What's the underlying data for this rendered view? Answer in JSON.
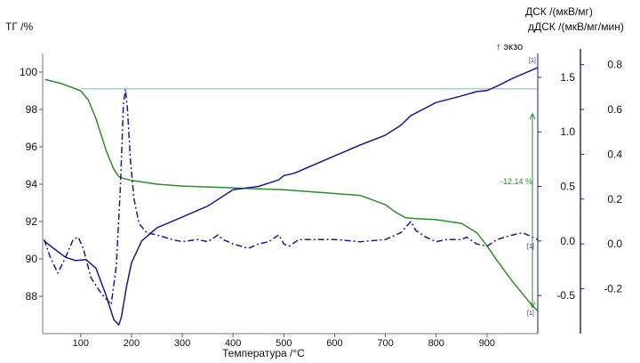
{
  "chart_data": {
    "type": "line",
    "xlabel": "Температура /°C",
    "xlim": [
      25,
      1000
    ],
    "x_ticks": [
      100,
      200,
      300,
      400,
      500,
      600,
      700,
      800,
      900
    ],
    "colors": {
      "tg": "#2e8b2e",
      "dsc": "#1a1a8c",
      "ddsc": "#1a1a8c",
      "reference": "#7fb3c8"
    },
    "axes": {
      "tg": {
        "label": "ТГ /%",
        "lim": [
          86,
          101
        ],
        "ticks": [
          88,
          90,
          92,
          94,
          96,
          98,
          100
        ]
      },
      "dsc": {
        "label": "ДСК /(мкВ/мг)",
        "lim": [
          -0.85,
          1.72
        ],
        "ticks": [
          -0.5,
          0.0,
          0.5,
          1.0,
          1.5
        ]
      },
      "ddsc": {
        "label": "дДСК /(мкВ/мг/мин)",
        "lim": [
          -0.4,
          0.85
        ],
        "ticks": [
          -0.2,
          0.0,
          0.2,
          0.4,
          0.6,
          0.8
        ]
      }
    },
    "exo_label": "↑ экзо",
    "reference_line": {
      "axis": "tg",
      "y": 99.1
    },
    "annotations": {
      "mass_loss": "-12.14 %",
      "marker": "[1]"
    },
    "series": [
      {
        "axis": "tg",
        "style": "solid",
        "x": [
          30,
          60,
          100,
          115,
          130,
          150,
          165,
          175,
          185,
          200,
          250,
          300,
          400,
          500,
          550,
          600,
          650,
          700,
          720,
          740,
          760,
          800,
          850,
          880,
          900,
          920,
          950,
          980,
          1000
        ],
        "y": [
          99.6,
          99.4,
          99.0,
          98.5,
          97.5,
          95.8,
          94.8,
          94.4,
          94.3,
          94.2,
          94.0,
          93.9,
          93.8,
          93.7,
          93.6,
          93.5,
          93.4,
          92.9,
          92.5,
          92.2,
          92.15,
          92.1,
          91.9,
          91.4,
          90.7,
          89.9,
          88.8,
          87.8,
          87.2
        ]
      },
      {
        "axis": "dsc",
        "style": "solid",
        "x": [
          28,
          50,
          70,
          90,
          110,
          130,
          150,
          165,
          175,
          180,
          190,
          200,
          220,
          250,
          300,
          350,
          400,
          450,
          490,
          500,
          520,
          550,
          600,
          650,
          700,
          730,
          750,
          800,
          850,
          880,
          900,
          920,
          950,
          980,
          1000
        ],
        "y": [
          0.0,
          -0.08,
          -0.15,
          -0.18,
          -0.17,
          -0.25,
          -0.5,
          -0.72,
          -0.77,
          -0.7,
          -0.42,
          -0.2,
          0.0,
          0.12,
          0.22,
          0.32,
          0.47,
          0.5,
          0.56,
          0.6,
          0.62,
          0.68,
          0.78,
          0.88,
          0.97,
          1.06,
          1.15,
          1.27,
          1.33,
          1.37,
          1.38,
          1.42,
          1.49,
          1.55,
          1.59
        ]
      },
      {
        "axis": "ddsc",
        "style": "dashdot",
        "x": [
          28,
          40,
          55,
          70,
          85,
          95,
          105,
          120,
          140,
          160,
          170,
          178,
          184,
          188,
          192,
          198,
          205,
          215,
          230,
          250,
          280,
          300,
          330,
          350,
          370,
          380,
          400,
          430,
          450,
          470,
          490,
          500,
          510,
          530,
          560,
          600,
          650,
          700,
          730,
          750,
          760,
          780,
          800,
          820,
          850,
          860,
          880,
          900,
          920,
          950,
          970,
          990,
          1000
        ],
        "y": [
          0.02,
          -0.06,
          -0.13,
          -0.06,
          0.02,
          0.03,
          -0.02,
          -0.15,
          -0.22,
          -0.27,
          -0.1,
          0.25,
          0.62,
          0.69,
          0.6,
          0.37,
          0.2,
          0.09,
          0.05,
          0.04,
          0.02,
          0.01,
          0.02,
          0.01,
          0.04,
          0.02,
          0.0,
          -0.02,
          0.0,
          0.01,
          0.04,
          0.0,
          -0.01,
          0.02,
          0.02,
          0.02,
          0.01,
          0.02,
          0.05,
          0.1,
          0.06,
          0.03,
          0.01,
          0.02,
          0.02,
          0.03,
          0.0,
          -0.01,
          0.02,
          0.04,
          0.05,
          0.03,
          0.02
        ]
      }
    ]
  }
}
